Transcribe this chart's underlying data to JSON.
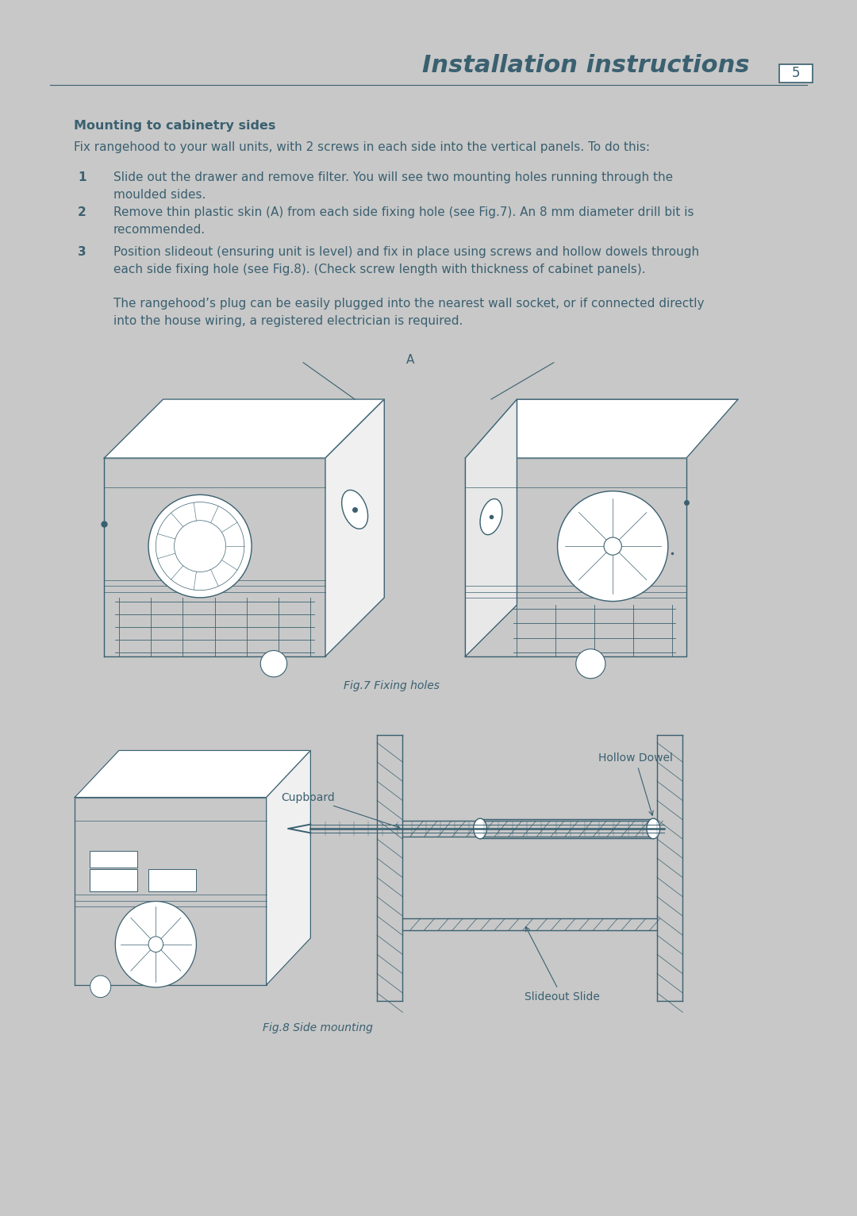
{
  "page_bg": "#c8c8c8",
  "paper_bg": "#ffffff",
  "text_color": "#3a6070",
  "title": "Installation instructions",
  "page_number": "5",
  "section_title": "Mounting to cabinetry sides",
  "section_intro": "Fix rangehood to your wall units, with 2 screws in each side into the vertical panels. To do this:",
  "steps": [
    "Slide out the drawer and remove filter. You will see two mounting holes running through the\nmoulded sides.",
    "Remove thin plastic skin (A) from each side fixing hole (see Fig.7). An 8 mm diameter drill bit is\nrecommended.",
    "Position slideout (ensuring unit is level) and fix in place using screws and hollow dowels through\neach side fixing hole (see Fig.8). (Check screw length with thickness of cabinet panels)."
  ],
  "paragraph": "The rangehood’s plug can be easily plugged into the nearest wall socket, or if connected directly\ninto the house wiring, a registered electrician is required.",
  "fig7_caption": "Fig.7 Fixing holes",
  "fig8_caption": "Fig.8 Side mounting",
  "label_A": "A",
  "label_hollow_dowel": "Hollow Dowel",
  "label_cupboard": "Cupboard",
  "label_slideout": "Slideout Slide"
}
